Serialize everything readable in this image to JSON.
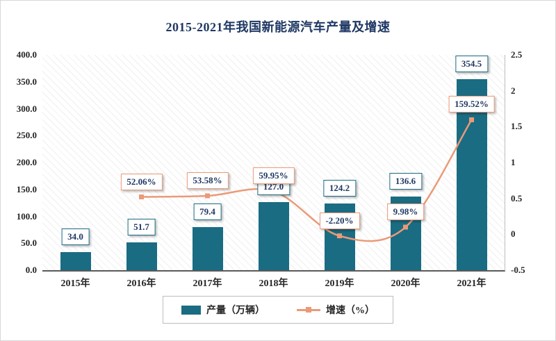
{
  "title": "2015-2021年我国新能源汽车产量及增速",
  "colors": {
    "bar": "#1a6c82",
    "line": "#ea9a78",
    "title_text": "#1f3864",
    "label_text": "#1f3864",
    "axis_text": "#262626"
  },
  "chart_data": {
    "type": "combo (bar + line)",
    "title": "2015-2021年我国新能源汽车产量及增速",
    "categories": [
      "2015年",
      "2016年",
      "2017年",
      "2018年",
      "2019年",
      "2020年",
      "2021年"
    ],
    "series": [
      {
        "name": "产量（万辆）",
        "type": "bar",
        "axis": "left",
        "color": "#1a6c82",
        "values": [
          34.0,
          51.7,
          79.4,
          127.0,
          124.2,
          136.6,
          354.5
        ],
        "labels": [
          "34.0",
          "51.7",
          "79.4",
          "127.0",
          "124.2",
          "136.6",
          "354.5"
        ]
      },
      {
        "name": "增速（%）",
        "type": "line",
        "axis": "right",
        "color": "#ea9a78",
        "x_start_index": 1,
        "values": [
          0.5206,
          0.5358,
          0.5995,
          -0.022,
          0.0998,
          1.5952
        ],
        "labels": [
          "52.06%",
          "53.58%",
          "59.95%",
          "-2.20%",
          "9.98%",
          "159.52%"
        ]
      }
    ],
    "left_axis": {
      "min": 0,
      "max": 400,
      "ticks": [
        "400.0",
        "350.0",
        "300.0",
        "250.0",
        "200.0",
        "150.0",
        "100.0",
        "50.0",
        "0.0"
      ]
    },
    "right_axis": {
      "min": -0.5,
      "max": 2.5,
      "ticks": [
        "2.5",
        "2",
        "1.5",
        "1",
        "0.5",
        "0",
        "-0.5"
      ]
    },
    "legend_position": "bottom",
    "grid": false,
    "plot_background": "diagonal-hatch"
  }
}
